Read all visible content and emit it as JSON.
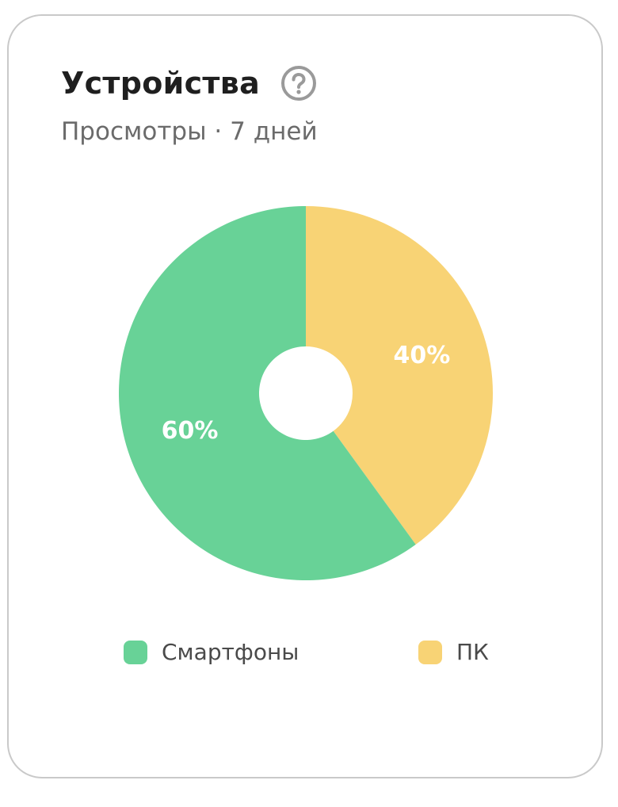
{
  "header": {
    "title": "Устройства",
    "subtitle": "Просмотры · 7 дней",
    "help_icon": "help-circle-icon"
  },
  "chart_data": {
    "type": "pie",
    "donut": true,
    "categories": [
      "Смартфоны",
      "ПК"
    ],
    "values": [
      60,
      40
    ],
    "labels": [
      "60%",
      "40%"
    ],
    "colors": [
      "#68d297",
      "#f8d375"
    ],
    "legend": "bottom"
  }
}
